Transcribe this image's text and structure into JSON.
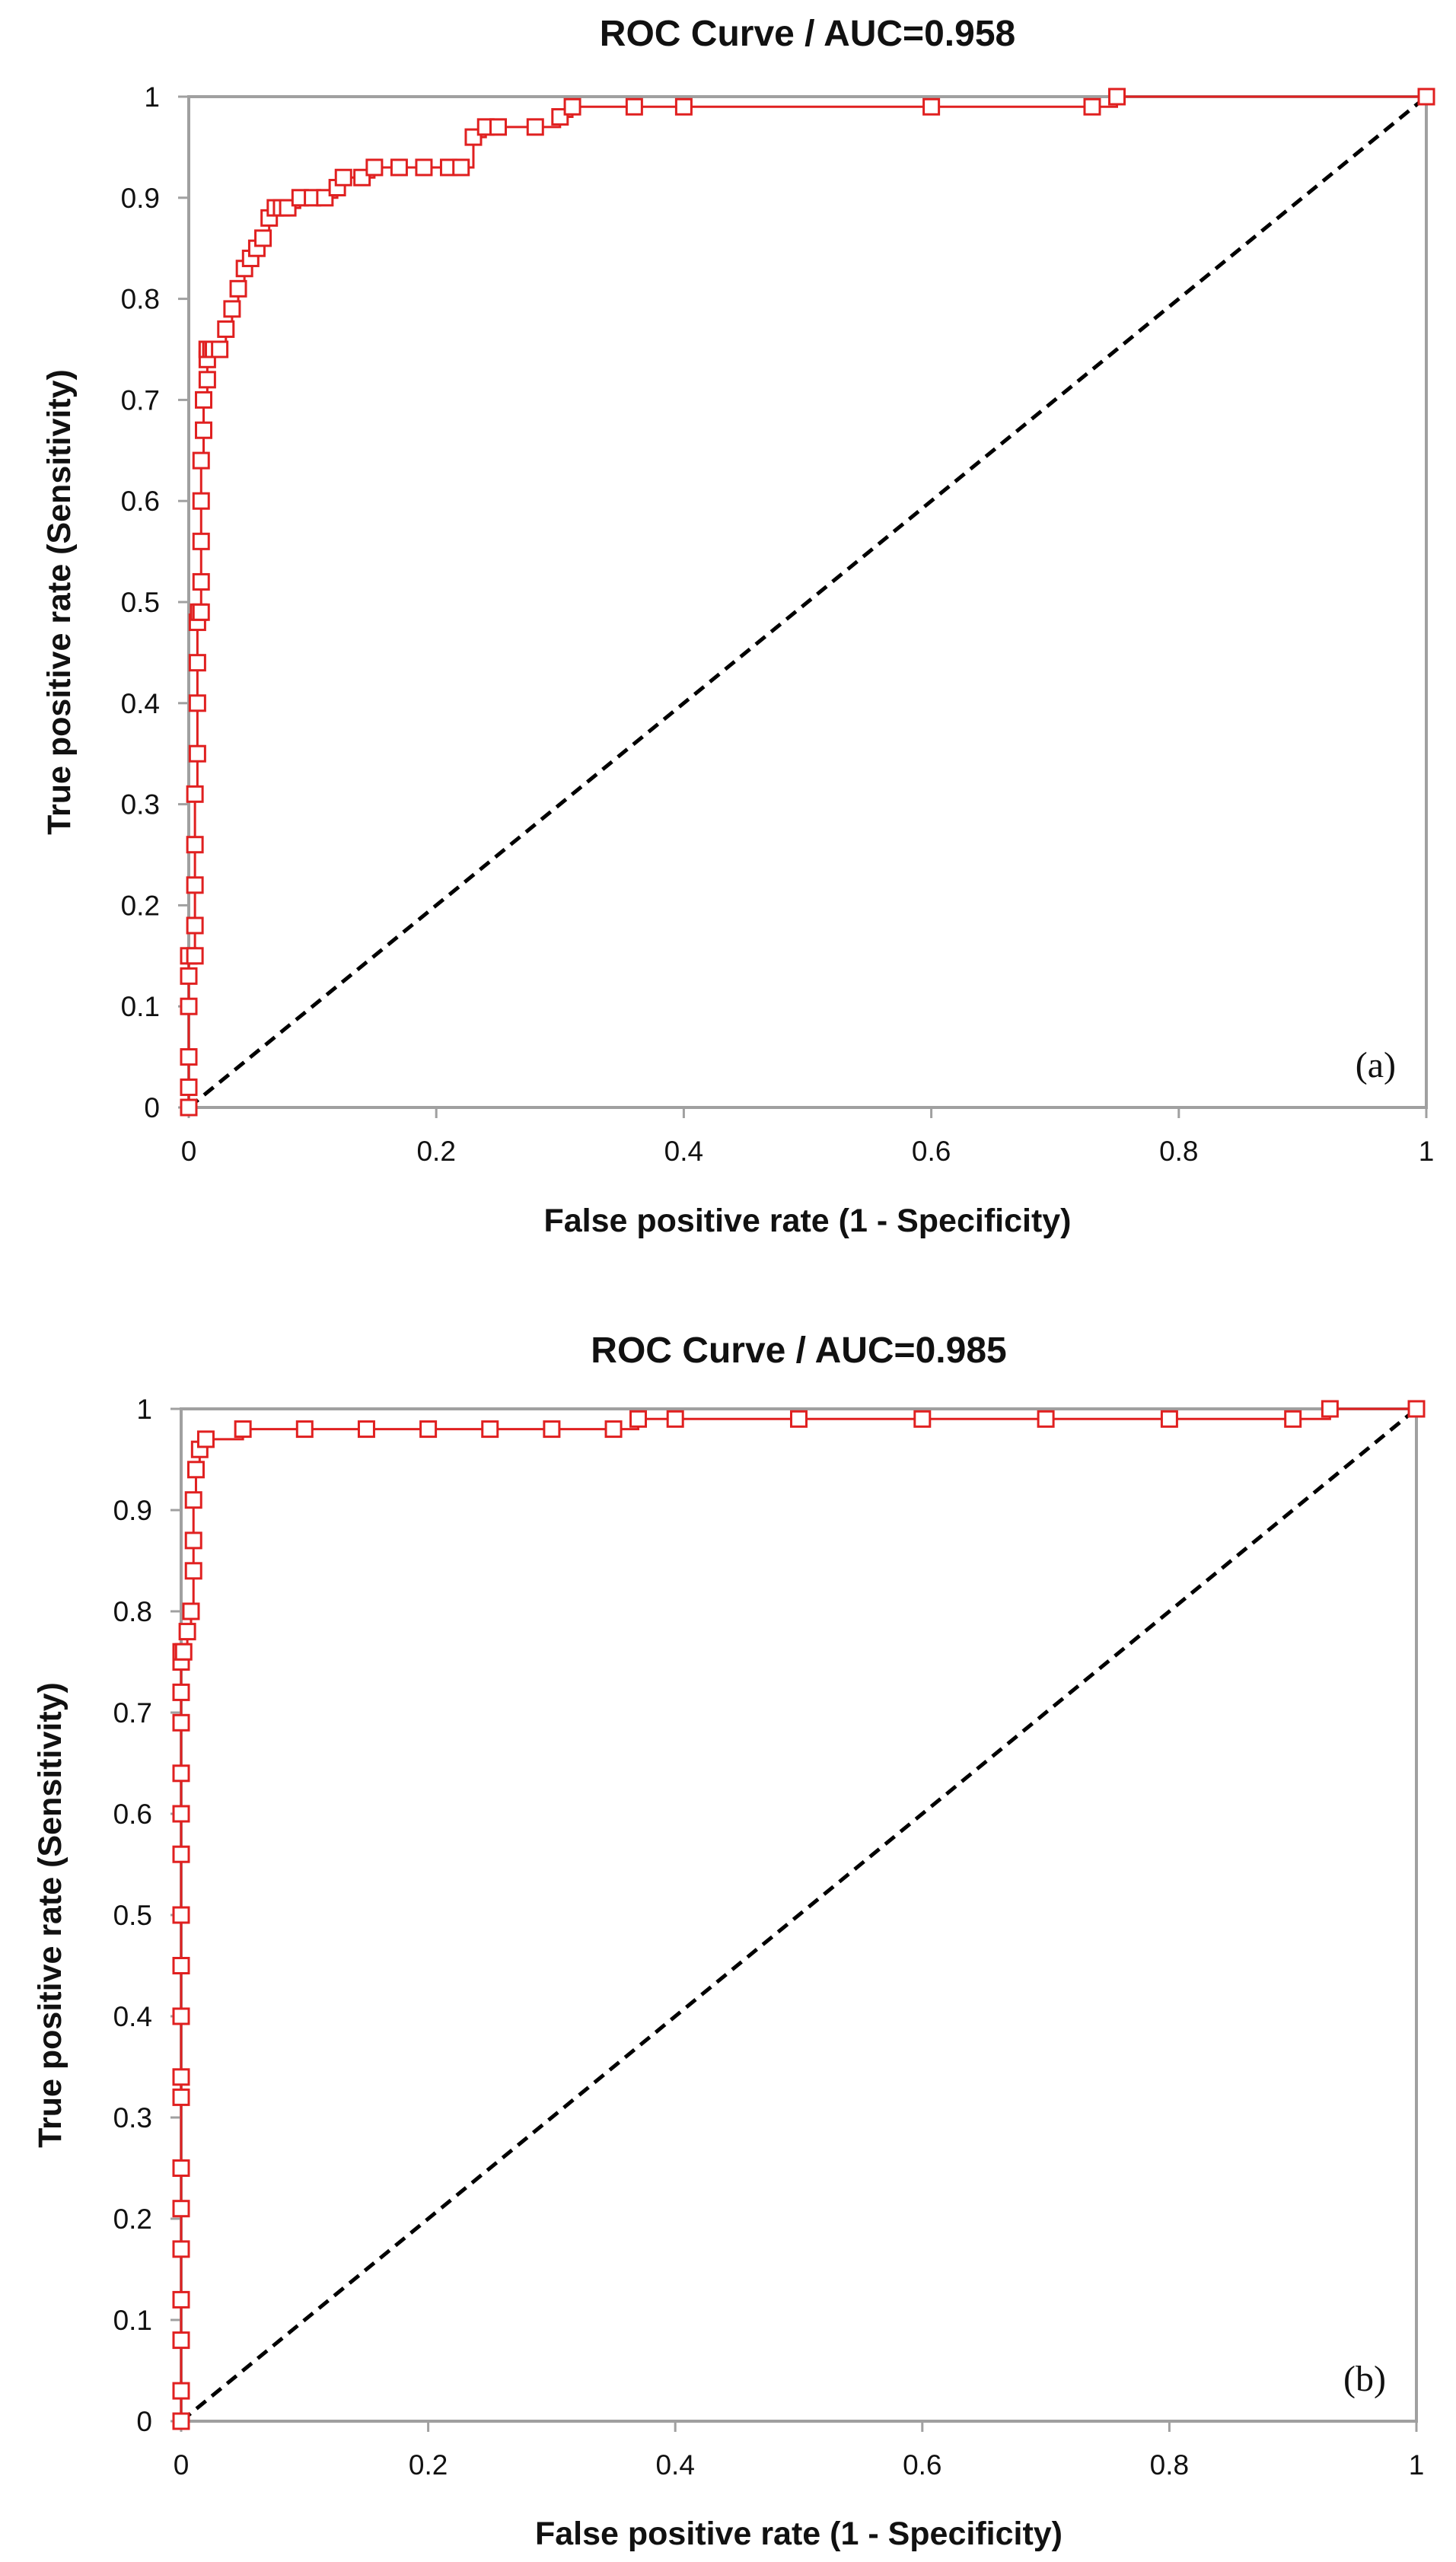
{
  "chart_data": [
    {
      "type": "line",
      "title": "ROC Curve / AUC=0.958",
      "panel_label": "(a)",
      "xlabel": "False positive rate (1 - Specificity)",
      "ylabel": "True positive rate (Sensitivity)",
      "xlim": [
        0,
        1
      ],
      "ylim": [
        0,
        1
      ],
      "x_ticks": [
        "0",
        "0.2",
        "0.4",
        "0.6",
        "0.8",
        "1"
      ],
      "y_ticks": [
        "0",
        "0.1",
        "0.2",
        "0.3",
        "0.4",
        "0.5",
        "0.6",
        "0.7",
        "0.8",
        "0.9",
        "1"
      ],
      "grid": false,
      "legend": "none",
      "colors": {
        "roc": "#e02020",
        "diagonal": "#000000",
        "frame": "#a0a0a0"
      },
      "series": [
        {
          "marker": "open-square",
          "x": [
            0,
            0,
            0,
            0,
            0,
            0,
            0.005,
            0.005,
            0.005,
            0.005,
            0.005,
            0.007,
            0.007,
            0.007,
            0.007,
            0.008,
            0.01,
            0.01,
            0.01,
            0.01,
            0.01,
            0.012,
            0.012,
            0.015,
            0.015,
            0.015,
            0.015,
            0.015,
            0.018,
            0.018,
            0.018,
            0.02,
            0.02,
            0.025,
            0.03,
            0.035,
            0.04,
            0.045,
            0.05,
            0.055,
            0.06,
            0.065,
            0.07,
            0.075,
            0.08,
            0.09,
            0.1,
            0.11,
            0.12,
            0.125,
            0.14,
            0.15,
            0.17,
            0.19,
            0.21,
            0.22,
            0.23,
            0.24,
            0.25,
            0.28,
            0.3,
            0.31,
            0.36,
            0.4,
            0.6,
            0.73,
            0.75,
            1
          ],
          "y": [
            0,
            0.02,
            0.05,
            0.1,
            0.13,
            0.15,
            0.15,
            0.18,
            0.22,
            0.26,
            0.31,
            0.35,
            0.4,
            0.44,
            0.48,
            0.49,
            0.49,
            0.52,
            0.56,
            0.6,
            0.64,
            0.67,
            0.7,
            0.72,
            0.74,
            0.75,
            0.75,
            0.75,
            0.75,
            0.75,
            0.75,
            0.75,
            0.75,
            0.75,
            0.77,
            0.79,
            0.81,
            0.83,
            0.84,
            0.85,
            0.86,
            0.88,
            0.89,
            0.89,
            0.89,
            0.9,
            0.9,
            0.9,
            0.91,
            0.92,
            0.92,
            0.93,
            0.93,
            0.93,
            0.93,
            0.93,
            0.96,
            0.97,
            0.97,
            0.97,
            0.98,
            0.99,
            0.99,
            0.99,
            0.99,
            0.99,
            1,
            1
          ]
        },
        {
          "style": "dashed",
          "x": [
            0,
            1
          ],
          "y": [
            0,
            1
          ]
        }
      ]
    },
    {
      "type": "line",
      "title": "ROC Curve /  AUC=0.985",
      "panel_label": "(b)",
      "xlabel": "False positive rate (1 - Specificity)",
      "ylabel": "True positive rate (Sensitivity)",
      "xlim": [
        0,
        1
      ],
      "ylim": [
        0,
        1
      ],
      "x_ticks": [
        "0",
        "0.2",
        "0.4",
        "0.6",
        "0.8",
        "1"
      ],
      "y_ticks": [
        "0",
        "0.1",
        "0.2",
        "0.3",
        "0.4",
        "0.5",
        "0.6",
        "0.7",
        "0.8",
        "0.9",
        "1"
      ],
      "grid": false,
      "legend": "none",
      "colors": {
        "roc": "#e02020",
        "diagonal": "#000000",
        "frame": "#a0a0a0"
      },
      "series": [
        {
          "marker": "open-square",
          "x": [
            0,
            0,
            0,
            0,
            0,
            0,
            0,
            0,
            0,
            0,
            0,
            0,
            0,
            0,
            0,
            0,
            0,
            0,
            0,
            0.002,
            0.005,
            0.008,
            0.01,
            0.01,
            0.01,
            0.012,
            0.015,
            0.02,
            0.05,
            0.1,
            0.15,
            0.2,
            0.25,
            0.3,
            0.35,
            0.37,
            0.4,
            0.5,
            0.6,
            0.7,
            0.8,
            0.9,
            0.93,
            1
          ],
          "y": [
            0,
            0.03,
            0.08,
            0.12,
            0.17,
            0.21,
            0.25,
            0.32,
            0.34,
            0.4,
            0.45,
            0.5,
            0.56,
            0.6,
            0.64,
            0.69,
            0.72,
            0.75,
            0.76,
            0.76,
            0.78,
            0.8,
            0.84,
            0.87,
            0.91,
            0.94,
            0.96,
            0.97,
            0.98,
            0.98,
            0.98,
            0.98,
            0.98,
            0.98,
            0.98,
            0.99,
            0.99,
            0.99,
            0.99,
            0.99,
            0.99,
            0.99,
            1,
            1
          ]
        },
        {
          "style": "dashed",
          "x": [
            0,
            1
          ],
          "y": [
            0,
            1
          ]
        }
      ]
    }
  ]
}
